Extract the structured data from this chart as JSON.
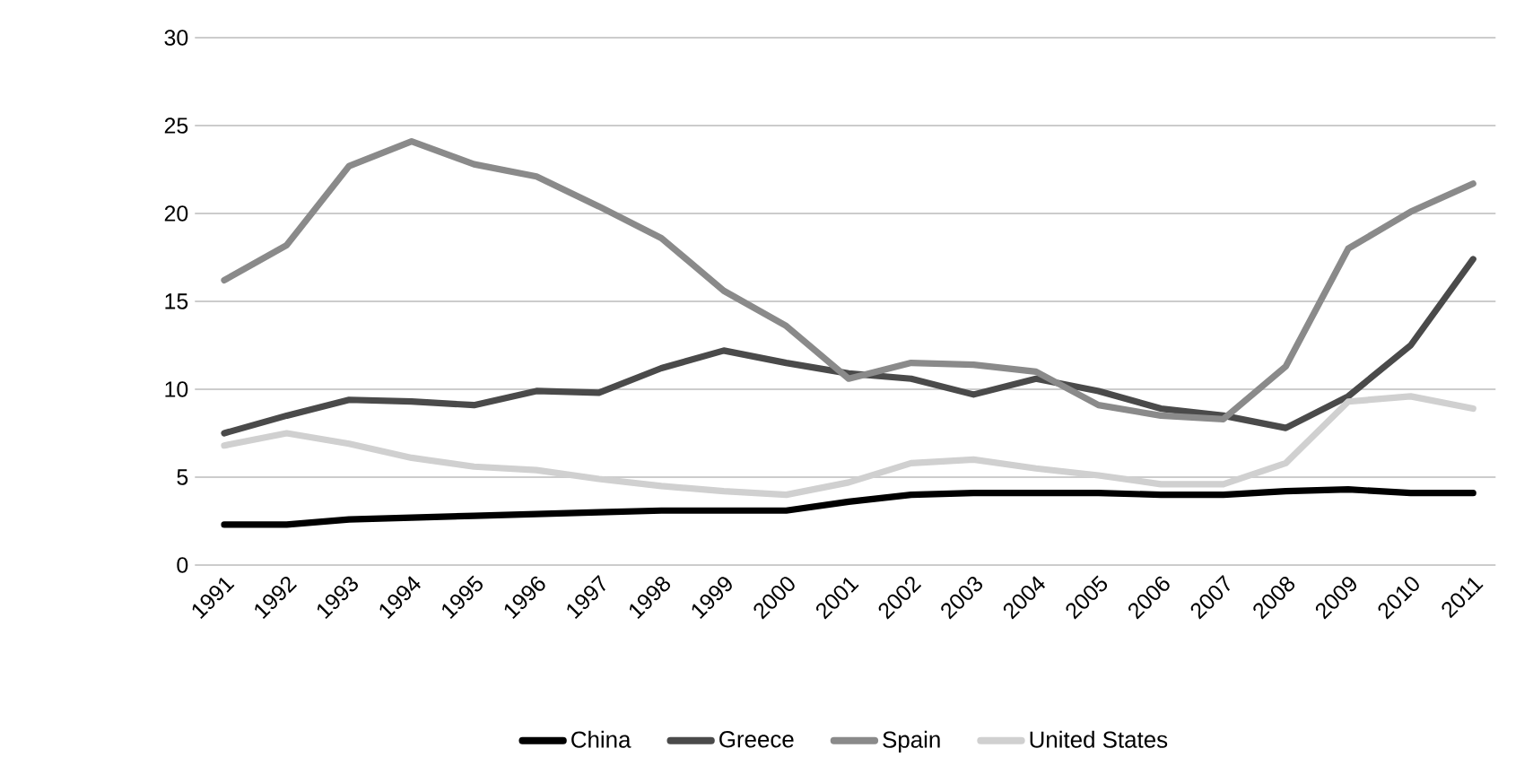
{
  "chart_data": {
    "type": "line",
    "categories": [
      "1991",
      "1992",
      "1993",
      "1994",
      "1995",
      "1996",
      "1997",
      "1998",
      "1999",
      "2000",
      "2001",
      "2002",
      "2003",
      "2004",
      "2005",
      "2006",
      "2007",
      "2008",
      "2009",
      "2010",
      "2011"
    ],
    "series": [
      {
        "name": "China",
        "color": "#000000",
        "values": [
          2.3,
          2.3,
          2.6,
          2.7,
          2.8,
          2.9,
          3.0,
          3.1,
          3.1,
          3.1,
          3.6,
          4.0,
          4.1,
          4.1,
          4.1,
          4.0,
          4.0,
          4.2,
          4.3,
          4.1,
          4.1
        ]
      },
      {
        "name": "Greece",
        "color": "#4a4a4a",
        "values": [
          7.5,
          8.5,
          9.4,
          9.3,
          9.1,
          9.9,
          9.8,
          11.2,
          12.2,
          11.5,
          10.9,
          10.6,
          9.7,
          10.6,
          9.9,
          8.9,
          8.5,
          7.8,
          9.6,
          12.5,
          17.4
        ]
      },
      {
        "name": "Spain",
        "color": "#8a8a8a",
        "values": [
          16.2,
          18.2,
          22.7,
          24.1,
          22.8,
          22.1,
          20.4,
          18.6,
          15.6,
          13.6,
          10.6,
          11.5,
          11.4,
          11.0,
          9.1,
          8.5,
          8.3,
          11.3,
          18.0,
          20.1,
          21.7
        ]
      },
      {
        "name": "United States",
        "color": "#d0d0d0",
        "values": [
          6.8,
          7.5,
          6.9,
          6.1,
          5.6,
          5.4,
          4.9,
          4.5,
          4.2,
          4.0,
          4.7,
          5.8,
          6.0,
          5.5,
          5.1,
          4.6,
          4.6,
          5.8,
          9.3,
          9.6,
          8.9
        ]
      }
    ],
    "ylim": [
      0,
      30
    ],
    "yticks": [
      0,
      5,
      10,
      15,
      20,
      25,
      30
    ],
    "grid": "y",
    "legend": "bottom",
    "marker": "none",
    "line_style": "solid"
  }
}
